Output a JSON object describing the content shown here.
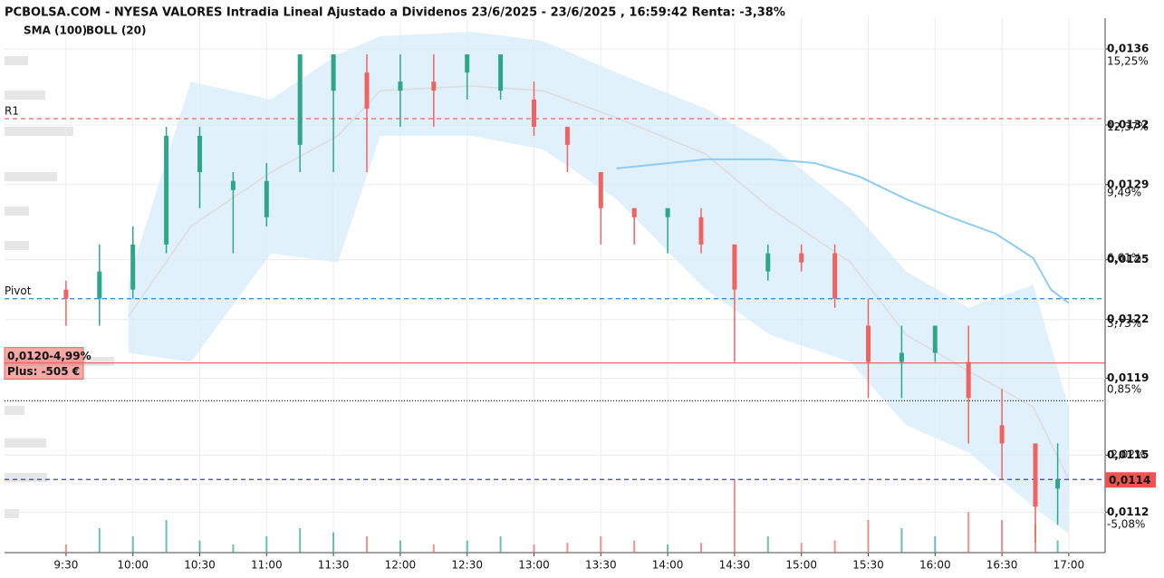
{
  "chart_data": {
    "type": "candlestick",
    "title": "PCBOLSA.COM - NYESA VALORES Intradia Lineal Ajustado a Dividenos 23/6/2025 - 23/6/2025 , 16:59:42 Renta: -3,38%",
    "up_color": "#2ea68a",
    "down_color": "#ef6461",
    "grid": true,
    "xlim": [
      542.4,
      1036.3
    ],
    "xticks": [
      {
        "value": 570,
        "label": "9:30"
      },
      {
        "value": 600,
        "label": "10:00"
      },
      {
        "value": 630,
        "label": "10:30"
      },
      {
        "value": 660,
        "label": "11:00"
      },
      {
        "value": 690,
        "label": "11:30"
      },
      {
        "value": 720,
        "label": "12:00"
      },
      {
        "value": 750,
        "label": "12:30"
      },
      {
        "value": 780,
        "label": "13:00"
      },
      {
        "value": 810,
        "label": "13:30"
      },
      {
        "value": 840,
        "label": "14:00"
      },
      {
        "value": 870,
        "label": "14:30"
      },
      {
        "value": 900,
        "label": "15:00"
      },
      {
        "value": 930,
        "label": "15:30"
      },
      {
        "value": 960,
        "label": "16:00"
      },
      {
        "value": 990,
        "label": "16:30"
      },
      {
        "value": 1020,
        "label": "17:00"
      }
    ],
    "ylim": [
      0.01099,
      0.01376
    ],
    "yticks": [
      {
        "value": 0.0136,
        "label": "0,0136"
      },
      {
        "value": 0.013206,
        "label": "0,0132"
      },
      {
        "value": 0.012897,
        "label": "0,0129"
      },
      {
        "value": 0.012508,
        "label": "0,0125"
      },
      {
        "value": 0.012198,
        "label": "0,0122"
      },
      {
        "value": 0.011894,
        "label": "0,0119"
      },
      {
        "value": 0.011495,
        "label": "0,0115"
      },
      {
        "value": 0.0112,
        "label": "0,0112"
      }
    ],
    "y2lim": [
      -6.31,
      17.16
    ],
    "y2ticks": [
      {
        "value": 15.25,
        "label": "15,25%"
      },
      {
        "value": 12.37,
        "label": "12,37%"
      },
      {
        "value": 9.49,
        "label": "9,49%"
      },
      {
        "value": 6.61,
        "label": "6,61%"
      },
      {
        "value": 3.73,
        "label": "3,73%"
      },
      {
        "value": 0.85,
        "label": "0,85%"
      },
      {
        "value": -2.02,
        "label": "-2,02%"
      },
      {
        "value": -5.08,
        "label": "-5,08%"
      }
    ],
    "candles": {
      "x": [
        570,
        585,
        600,
        615,
        630,
        645,
        660,
        675,
        690,
        705,
        720,
        735,
        750,
        765,
        780,
        795,
        810,
        825,
        840,
        855,
        870,
        885,
        900,
        915,
        930,
        945,
        960,
        975,
        990,
        1005,
        1015
      ],
      "open": [
        0.012353,
        0.012306,
        0.012353,
        0.012587,
        0.012962,
        0.012869,
        0.012728,
        0.013103,
        0.013384,
        0.013478,
        0.013384,
        0.013431,
        0.013478,
        0.013384,
        0.013338,
        0.013197,
        0.012962,
        0.012775,
        0.012728,
        0.012728,
        0.012587,
        0.012447,
        0.012541,
        0.012541,
        0.012166,
        0.011978,
        0.012025,
        0.011978,
        0.01165,
        0.011556,
        0.011322
      ],
      "high": [
        0.0124,
        0.012587,
        0.012681,
        0.013197,
        0.013197,
        0.012962,
        0.013009,
        0.013572,
        0.013572,
        0.013572,
        0.013572,
        0.013572,
        0.013572,
        0.013572,
        0.013431,
        0.013197,
        0.012962,
        0.012775,
        0.012775,
        0.012775,
        0.012587,
        0.012587,
        0.012587,
        0.012587,
        0.012306,
        0.012166,
        0.012166,
        0.012166,
        0.011838,
        0.011556,
        0.011556
      ],
      "low": [
        0.012166,
        0.012166,
        0.012306,
        0.012541,
        0.012775,
        0.012541,
        0.012681,
        0.012962,
        0.012962,
        0.012962,
        0.013197,
        0.013197,
        0.013338,
        0.013338,
        0.01315,
        0.012962,
        0.012587,
        0.012587,
        0.012541,
        0.012541,
        0.011978,
        0.0124,
        0.012447,
        0.012259,
        0.011791,
        0.011791,
        0.011978,
        0.011556,
        0.011369,
        0.011041,
        0.011134
      ],
      "close": [
        0.012306,
        0.012447,
        0.012587,
        0.01315,
        0.01315,
        0.012916,
        0.012916,
        0.013572,
        0.013572,
        0.013291,
        0.013431,
        0.013384,
        0.013572,
        0.013572,
        0.013197,
        0.013103,
        0.012775,
        0.012728,
        0.012775,
        0.012587,
        0.012353,
        0.012541,
        0.012494,
        0.012306,
        0.011978,
        0.012025,
        0.012166,
        0.011791,
        0.011556,
        0.011228,
        0.011369
      ],
      "volume": [
        10,
        30,
        20,
        40,
        15,
        10,
        20,
        30,
        25,
        20,
        15,
        10,
        15,
        20,
        10,
        12,
        20,
        15,
        10,
        12,
        90,
        20,
        12,
        15,
        40,
        30,
        20,
        50,
        40,
        35,
        15
      ]
    },
    "vlim": [
      0,
      100
    ],
    "sma": {
      "name": "SMA (100)",
      "color": "#8fcdf0",
      "x": [
        817,
        833,
        857,
        886,
        906,
        926,
        947,
        967,
        987,
        1004,
        1012,
        1020
      ],
      "values": [
        0.012981,
        0.013,
        0.013028,
        0.013028,
        0.013009,
        0.012939,
        0.012822,
        0.012728,
        0.012644,
        0.012517,
        0.012353,
        0.012283
      ]
    },
    "bollinger": {
      "name": "BOLL (20)",
      "color": "#d6ecfa",
      "line_color": "#dcdcdc",
      "x": [
        598,
        626,
        662,
        692,
        711,
        752,
        784,
        817,
        857,
        886,
        922,
        947,
        975,
        1004,
        1020
      ],
      "upper": [
        0.0124,
        0.013431,
        0.013338,
        0.013572,
        0.013666,
        0.013689,
        0.013642,
        0.013478,
        0.013291,
        0.013103,
        0.012775,
        0.012447,
        0.012259,
        0.012377,
        0.011744
      ],
      "middle": [
        0.012213,
        0.012681,
        0.012962,
        0.01315,
        0.013384,
        0.013408,
        0.013384,
        0.013244,
        0.013056,
        0.012775,
        0.012494,
        0.012119,
        0.011931,
        0.011744,
        0.011369
      ],
      "lower": [
        0.012025,
        0.011978,
        0.012541,
        0.012494,
        0.01315,
        0.01315,
        0.01308,
        0.012822,
        0.012353,
        0.012119,
        0.011978,
        0.01165,
        0.011509,
        0.011228,
        0.011088
      ]
    },
    "levels": [
      {
        "name": "R1",
        "value": 0.013239,
        "color": "#ef6461"
      },
      {
        "name": "Pivot",
        "value": 0.012306,
        "color": "#3b8fd9"
      }
    ],
    "position": {
      "value": 0.011973,
      "label": "0,0120",
      "change_label": "-4,99%",
      "pnl_label": "Plus: -505 €",
      "color": "#ef6461"
    },
    "reference_line": {
      "value": 0.011777,
      "color": "#222222"
    },
    "last_price": {
      "value": 0.011369,
      "label": "0,0114",
      "color": "#ef5350",
      "line_color": "#3a3ad6"
    }
  }
}
